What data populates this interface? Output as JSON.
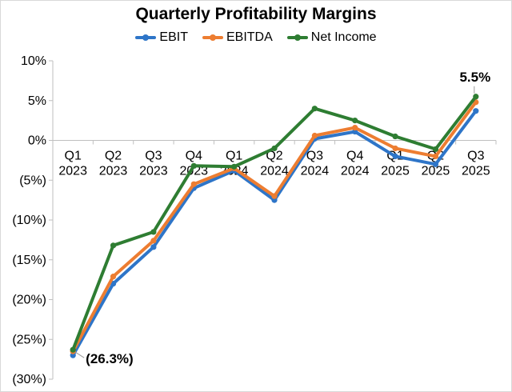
{
  "colors": {
    "EBIT": "#2E75C8",
    "EBITDA": "#ED7D31",
    "Net Income": "#2E7D32",
    "axis": "#bfbfbf",
    "grid": "#d9d9d9"
  },
  "chart_data": {
    "type": "line",
    "title": "Quarterly Profitability Margins",
    "categories": [
      [
        "Q1",
        "2023"
      ],
      [
        "Q2",
        "2023"
      ],
      [
        "Q3",
        "2023"
      ],
      [
        "Q4",
        "2023"
      ],
      [
        "Q1",
        "2024"
      ],
      [
        "Q2",
        "2024"
      ],
      [
        "Q3",
        "2024"
      ],
      [
        "Q4",
        "2024"
      ],
      [
        "Q1",
        "2025"
      ],
      [
        "Q2",
        "2025"
      ],
      [
        "Q3",
        "2025"
      ]
    ],
    "ylim": [
      -30,
      10
    ],
    "yticks": [
      10,
      5,
      0,
      -5,
      -10,
      -15,
      -20,
      -25,
      -30
    ],
    "ytick_labels": [
      "10%",
      "5%",
      "0%",
      "(5%)",
      "(10%)",
      "(15%)",
      "(20%)",
      "(25%)",
      "(30%)"
    ],
    "grid": false,
    "legend": "top",
    "series": [
      {
        "name": "EBIT",
        "values": [
          -27.0,
          -18.0,
          -13.4,
          -6.0,
          -3.8,
          -7.5,
          0.2,
          1.1,
          -2.0,
          -3.0,
          3.7
        ]
      },
      {
        "name": "EBITDA",
        "values": [
          -26.5,
          -17.1,
          -12.6,
          -5.5,
          -3.5,
          -7.0,
          0.6,
          1.6,
          -1.0,
          -2.0,
          4.8
        ]
      },
      {
        "name": "Net Income",
        "values": [
          -26.3,
          -13.2,
          -11.5,
          -3.2,
          -3.3,
          -1.0,
          4.0,
          2.5,
          0.5,
          -1.1,
          5.5
        ]
      }
    ],
    "annotations": [
      {
        "text": "(26.3%)",
        "series": "Net Income",
        "index": 0
      },
      {
        "text": "5.5%",
        "series": "Net Income",
        "index": 10
      }
    ]
  }
}
